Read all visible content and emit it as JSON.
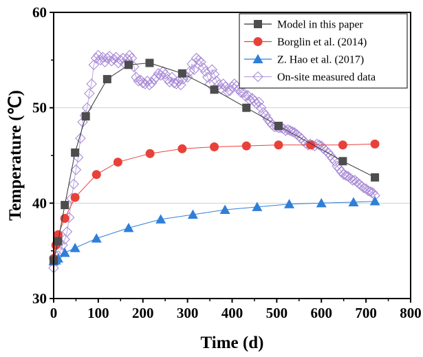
{
  "chart_data": {
    "type": "line",
    "xlabel": "Time (d)",
    "ylabel": "Temperature (℃)",
    "xlim": [
      0,
      800
    ],
    "ylim": [
      30,
      60
    ],
    "xticks": [
      "0",
      "100",
      "200",
      "300",
      "400",
      "500",
      "600",
      "700",
      "800"
    ],
    "yticks": [
      "30",
      "40",
      "50",
      "60"
    ],
    "grid": "horizontal",
    "legend_position": "top-right",
    "series": [
      {
        "name": "Model in this paper",
        "marker": "square",
        "color": "#4d4d4d",
        "line_color": "#333333",
        "x": [
          0,
          10,
          25,
          48,
          72,
          120,
          168,
          215,
          288,
          360,
          432,
          504,
          648,
          720
        ],
        "y": [
          34.0,
          36.0,
          39.8,
          45.3,
          49.1,
          53.0,
          54.5,
          54.7,
          53.6,
          51.9,
          50.0,
          48.1,
          44.4,
          42.7
        ]
      },
      {
        "name": "Borglin et al. (2014)",
        "marker": "circle",
        "color": "#e8413a",
        "line_color": "#e8413a",
        "x": [
          0,
          5,
          10,
          25,
          48,
          96,
          144,
          216,
          288,
          360,
          432,
          504,
          576,
          648,
          720
        ],
        "y": [
          34.2,
          35.6,
          36.7,
          38.4,
          40.6,
          43.0,
          44.3,
          45.2,
          45.7,
          45.9,
          46.0,
          46.1,
          46.1,
          46.1,
          46.2
        ]
      },
      {
        "name": "Z. Hao et al. (2017)",
        "marker": "triangle",
        "color": "#2f7fd8",
        "line_color": "#2f7fd8",
        "x": [
          0,
          5,
          10,
          25,
          48,
          96,
          168,
          240,
          312,
          384,
          456,
          528,
          600,
          672,
          720
        ],
        "y": [
          33.9,
          34.0,
          34.2,
          34.8,
          35.3,
          36.3,
          37.4,
          38.3,
          38.8,
          39.3,
          39.6,
          39.9,
          40.0,
          40.1,
          40.2
        ]
      },
      {
        "name": "On-site measured data",
        "marker": "diamond",
        "color": "#a98ad6",
        "line_color": "#b9a3e0",
        "x": [
          0,
          5,
          10,
          15,
          20,
          25,
          30,
          35,
          40,
          45,
          50,
          55,
          60,
          65,
          70,
          75,
          80,
          85,
          90,
          95,
          100,
          105,
          110,
          115,
          120,
          125,
          130,
          135,
          140,
          145,
          150,
          155,
          160,
          165,
          170,
          175,
          180,
          185,
          190,
          195,
          200,
          205,
          210,
          215,
          220,
          225,
          230,
          235,
          240,
          245,
          250,
          255,
          260,
          265,
          270,
          275,
          280,
          285,
          290,
          295,
          300,
          305,
          310,
          315,
          320,
          325,
          330,
          335,
          340,
          345,
          350,
          355,
          360,
          365,
          370,
          375,
          380,
          385,
          390,
          395,
          400,
          405,
          410,
          415,
          420,
          425,
          430,
          435,
          440,
          445,
          450,
          455,
          460,
          465,
          470,
          475,
          480,
          485,
          490,
          495,
          500,
          505,
          510,
          515,
          520,
          525,
          530,
          535,
          540,
          545,
          550,
          555,
          560,
          565,
          570,
          575,
          580,
          585,
          590,
          595,
          600,
          605,
          610,
          615,
          620,
          625,
          630,
          635,
          640,
          645,
          650,
          655,
          660,
          665,
          670,
          675,
          680,
          685,
          690,
          695,
          700,
          705,
          710,
          715,
          720
        ],
        "y": [
          33.2,
          34.0,
          34.5,
          35.0,
          35.6,
          36.2,
          37.0,
          38.5,
          40.5,
          42.0,
          43.5,
          44.8,
          46.8,
          48.5,
          49.2,
          50.0,
          51.5,
          52.5,
          54.5,
          55.2,
          55.5,
          55.0,
          55.3,
          54.8,
          55.2,
          55.4,
          54.9,
          55.1,
          55.3,
          54.7,
          55.0,
          55.2,
          54.6,
          55.1,
          55.5,
          55.2,
          54.3,
          53.2,
          52.8,
          52.9,
          52.6,
          52.5,
          52.8,
          52.4,
          52.6,
          53.0,
          53.2,
          53.6,
          53.4,
          53.8,
          53.5,
          53.0,
          52.7,
          53.2,
          52.6,
          52.5,
          52.8,
          52.4,
          53.0,
          53.4,
          53.2,
          53.8,
          54.6,
          54.0,
          55.2,
          55.0,
          54.8,
          54.2,
          53.8,
          53.2,
          52.5,
          54.0,
          53.5,
          52.8,
          52.4,
          52.0,
          52.5,
          52.2,
          51.7,
          51.8,
          52.2,
          52.5,
          52.3,
          51.9,
          51.6,
          51.6,
          51.2,
          51.3,
          50.8,
          51.0,
          50.7,
          50.4,
          50.6,
          50.0,
          49.5,
          49.2,
          48.8,
          48.5,
          48.2,
          48.0,
          48.0,
          47.9,
          47.9,
          47.8,
          47.6,
          47.7,
          47.6,
          47.5,
          47.4,
          47.2,
          47.0,
          46.8,
          46.5,
          46.3,
          46.1,
          46.2,
          46.1,
          46.0,
          46.2,
          46.1,
          46.0,
          45.7,
          45.5,
          45.3,
          45.0,
          44.7,
          44.4,
          43.9,
          43.6,
          43.3,
          43.0,
          42.9,
          42.8,
          42.6,
          42.4,
          42.4,
          42.2,
          42.0,
          41.8,
          41.6,
          41.5,
          41.3,
          41.2,
          41.1,
          40.8
        ]
      }
    ]
  }
}
